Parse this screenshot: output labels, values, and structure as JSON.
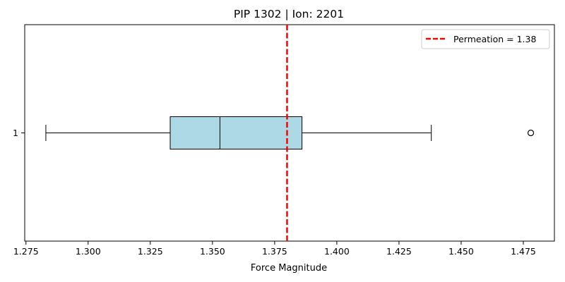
{
  "chart_data": {
    "type": "boxplot",
    "orientation": "horizontal",
    "title": "PIP 1302 | Ion: 2201",
    "xlabel": "Force Magnitude",
    "ylabel": "",
    "xlim": [
      1.2745,
      1.4875
    ],
    "x_ticks": [
      1.275,
      1.3,
      1.325,
      1.35,
      1.375,
      1.4,
      1.425,
      1.45,
      1.475
    ],
    "x_tick_labels": [
      "1.275",
      "1.300",
      "1.325",
      "1.350",
      "1.375",
      "1.400",
      "1.425",
      "1.450",
      "1.475"
    ],
    "y_ticks": [
      1
    ],
    "y_tick_labels": [
      "1"
    ],
    "box": {
      "category": "1",
      "whisker_low": 1.283,
      "q1": 1.333,
      "median": 1.353,
      "q3": 1.386,
      "whisker_high": 1.438,
      "outliers": [
        1.478
      ],
      "fill_color": "#add8e6",
      "edge_color": "#000000"
    },
    "reference_line": {
      "value": 1.38,
      "label": "Permeation = 1.38",
      "color": "#ff0000",
      "style": "dashed"
    },
    "legend": {
      "position": "top-right",
      "entries": [
        {
          "label": "Permeation = 1.38",
          "color": "#ff0000",
          "style": "dashed"
        }
      ]
    },
    "grid": false
  }
}
